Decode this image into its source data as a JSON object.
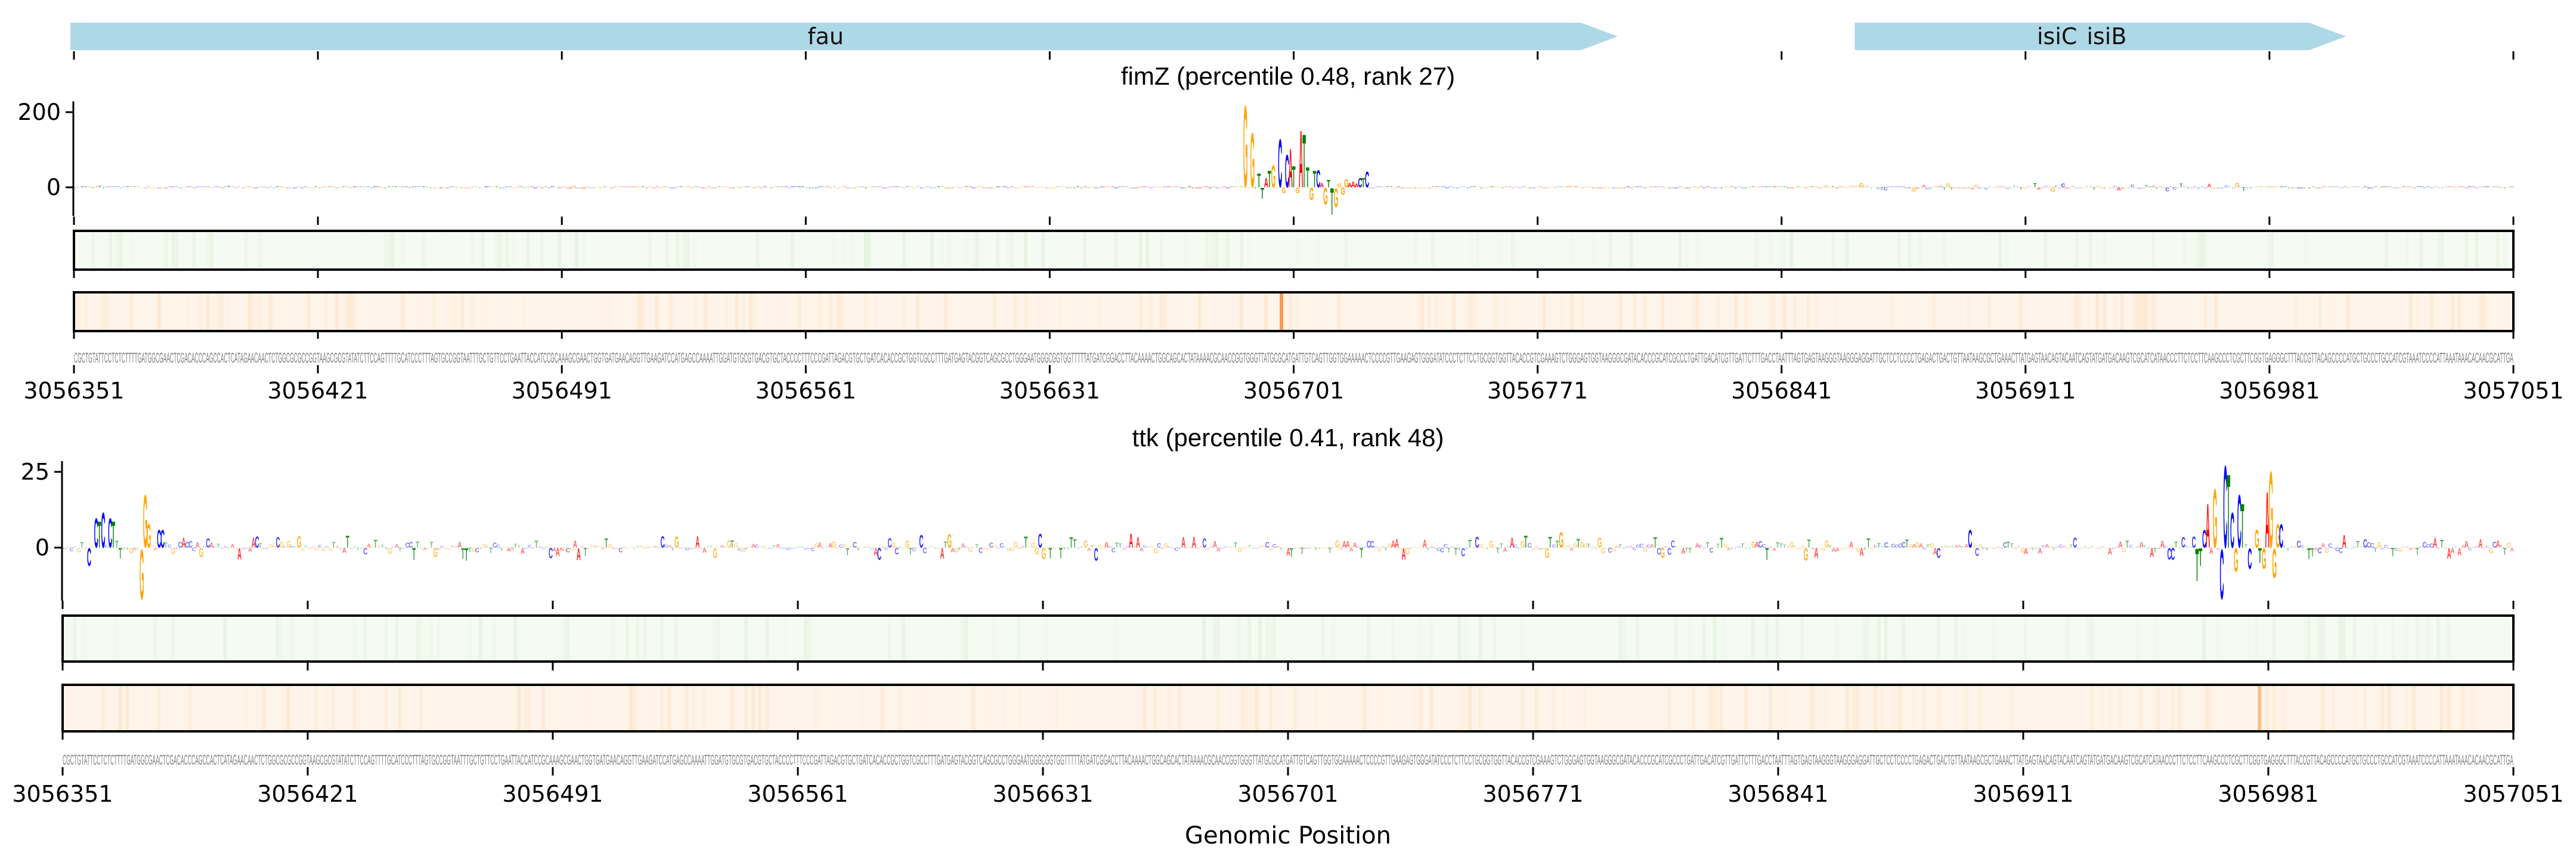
{
  "colors": {
    "A": "#ff0000",
    "C": "#0000ff",
    "G": "#ffa500",
    "T": "#008000",
    "gene": "#add8e6",
    "attr_bg": "#f5faf2",
    "attr_stripe": "#e2f1dc",
    "obs_bg": "#fef4e9",
    "obs_stripe": "#fde3c8",
    "sequence": "#808080"
  },
  "genes": [
    {
      "name": "fau",
      "start": 3056350,
      "end": 3056794,
      "strand": "+"
    },
    {
      "name": "isiC",
      "start": 3056862,
      "end": 3057003,
      "strand": "+"
    },
    {
      "name": "isiB",
      "start": 3056862,
      "end": 3057003,
      "strand": "+"
    }
  ],
  "sequence": "CGCTGTATTCCTCTCTTTTGATGGCGAACTCGACACCCAGCCACTCATAGAACAACTCTGGCGCGCCGGTAAGCGCGTATATCTTCCAGTTTTGCATCCCTTTAGTGCCGGTAATTTGCTGTTCCTGAATTACCATCCGCAAAGCGAACTGGTGATGAACAGGTTGAAGATCCATGAGCCAAAATTGGATGTGCGTGACGTGCTACCCCTTTCCCGATTAGACGTGCTGATCACACCGCTGGTCGCCTTTGATGAGTACGGTCAGCGCCTGGGAATGGGCGGTGGTTTTTATGATCGGACCTTACAAAACTGGCAGCACTATAAAACGCAACCGGTGGGTTATGCGCATGATTGTCAGTTGGTGGAAAAACTCCCCGTTGAAGAGTGGGATATCCCTCTTCCTGCGGTGGTTACACCGTCGAAAGTCTGGGAGTGGTAAGGGCGATACACCCGCATCGCCCTGATTGACATCGTTGATTCTTTGACCTAATTTAGTGAGTAAGGGTAAGGGAGGATTGCTCCTCCCCTGAGACTGACTGTTAATAAGCGCTGAAACTTATGAGTAACAGTACAATCAGTATGATGACAAGTCGCATCATAACCCTTCTCCTTCAAGCCCTCGCTTCGGTGAGGGCTTTACCGTTACAGCCCCATGCTGCCCTGCCATCGTAAATCCCCATTAAATAAACACAACGCATTGA",
  "chart_data": [
    {
      "type": "sequence-logo",
      "title": "fimZ (percentile 0.48, rank 27)",
      "xlabel": "",
      "ylabel": "",
      "xlim": [
        3056351,
        3057051
      ],
      "ylim": [
        -76,
        229
      ],
      "y_ticks": [
        "200",
        "0"
      ],
      "y_tick_values": [
        200,
        0
      ],
      "x_ticks": [
        "3056351",
        "3056421",
        "3056491",
        "3056561",
        "3056631",
        "3056701",
        "3056771",
        "3056841",
        "3056911",
        "3056981",
        "3057051"
      ],
      "background_amplitude": 4,
      "bumpy_ranges": [
        [
          3056860,
          3056980,
          14
        ]
      ],
      "observed_highlight_pos": 3056697,
      "observed_highlight_color": "#f79a52",
      "peaks": [
        {
          "pos": 3056687,
          "base": "G",
          "value": 225
        },
        {
          "pos": 3056689,
          "base": "G",
          "value": 150
        },
        {
          "pos": 3056691,
          "base": "T",
          "value": 38
        },
        {
          "pos": 3056692,
          "base": "T",
          "value": -30
        },
        {
          "pos": 3056693,
          "base": "A",
          "value": 25
        },
        {
          "pos": 3056694,
          "base": "T",
          "value": 45
        },
        {
          "pos": 3056695,
          "base": "G",
          "value": 60
        },
        {
          "pos": 3056697,
          "base": "C",
          "value": 133
        },
        {
          "pos": 3056698,
          "base": "G",
          "value": -15
        },
        {
          "pos": 3056699,
          "base": "C",
          "value": 90
        },
        {
          "pos": 3056700,
          "base": "A",
          "value": 106
        },
        {
          "pos": 3056701,
          "base": "T",
          "value": 58
        },
        {
          "pos": 3056702,
          "base": "G",
          "value": -15
        },
        {
          "pos": 3056703,
          "base": "A",
          "value": 157
        },
        {
          "pos": 3056704,
          "base": "T",
          "value": 145
        },
        {
          "pos": 3056705,
          "base": "T",
          "value": 55
        },
        {
          "pos": 3056706,
          "base": "G",
          "value": -33
        },
        {
          "pos": 3056707,
          "base": "T",
          "value": 45
        },
        {
          "pos": 3056708,
          "base": "C",
          "value": 48
        },
        {
          "pos": 3056709,
          "base": "A",
          "value": 12
        },
        {
          "pos": 3056710,
          "base": "G",
          "value": -45
        },
        {
          "pos": 3056711,
          "base": "T",
          "value": 20
        },
        {
          "pos": 3056712,
          "base": "T",
          "value": -73
        },
        {
          "pos": 3056713,
          "base": "G",
          "value": -52
        },
        {
          "pos": 3056714,
          "base": "G",
          "value": 10
        },
        {
          "pos": 3056715,
          "base": "G",
          "value": -20
        },
        {
          "pos": 3056716,
          "base": "G",
          "value": 22
        },
        {
          "pos": 3056717,
          "base": "A",
          "value": 12
        },
        {
          "pos": 3056718,
          "base": "A",
          "value": 16
        },
        {
          "pos": 3056719,
          "base": "A",
          "value": 10
        },
        {
          "pos": 3056720,
          "base": "C",
          "value": 25
        },
        {
          "pos": 3056721,
          "base": "T",
          "value": 25
        },
        {
          "pos": 3056722,
          "base": "C",
          "value": 43
        }
      ]
    },
    {
      "type": "sequence-logo",
      "title": "ttk (percentile 0.41, rank 48)",
      "xlabel": "Genomic Position",
      "ylabel": "",
      "xlim": [
        3056351,
        3057051
      ],
      "ylim": [
        -18,
        28
      ],
      "y_ticks": [
        "25",
        "0"
      ],
      "y_tick_values": [
        25,
        0
      ],
      "x_ticks": [
        "3056351",
        "3056421",
        "3056491",
        "3056561",
        "3056631",
        "3056701",
        "3056771",
        "3056841",
        "3056911",
        "3056981",
        "3057051"
      ],
      "background_amplitude": 5,
      "bumpy_ranges": [],
      "observed_highlight_pos": 3056978,
      "observed_highlight_color": "#fdbd88",
      "peaks": [
        {
          "pos": 3056358,
          "base": "C",
          "value": -6
        },
        {
          "pos": 3056360,
          "base": "C",
          "value": 10
        },
        {
          "pos": 3056361,
          "base": "T",
          "value": 9
        },
        {
          "pos": 3056362,
          "base": "C",
          "value": 12
        },
        {
          "pos": 3056364,
          "base": "C",
          "value": 10
        },
        {
          "pos": 3056365,
          "base": "T",
          "value": 9
        },
        {
          "pos": 3056373,
          "base": "G",
          "value": -17
        },
        {
          "pos": 3056374,
          "base": "G",
          "value": 18
        },
        {
          "pos": 3056375,
          "base": "G",
          "value": 8
        },
        {
          "pos": 3056378,
          "base": "C",
          "value": 6
        },
        {
          "pos": 3056379,
          "base": "C",
          "value": 6
        },
        {
          "pos": 3056896,
          "base": "C",
          "value": 6
        },
        {
          "pos": 3056961,
          "base": "T",
          "value": -11
        },
        {
          "pos": 3056962,
          "base": "T",
          "value": -6
        },
        {
          "pos": 3056963,
          "base": "C",
          "value": 6
        },
        {
          "pos": 3056964,
          "base": "A",
          "value": 15
        },
        {
          "pos": 3056966,
          "base": "G",
          "value": 20
        },
        {
          "pos": 3056968,
          "base": "C",
          "value": -17
        },
        {
          "pos": 3056969,
          "base": "C",
          "value": 28
        },
        {
          "pos": 3056970,
          "base": "T",
          "value": 25
        },
        {
          "pos": 3056971,
          "base": "C",
          "value": 12
        },
        {
          "pos": 3056972,
          "base": "G",
          "value": -8
        },
        {
          "pos": 3056973,
          "base": "C",
          "value": 18
        },
        {
          "pos": 3056974,
          "base": "T",
          "value": 15
        },
        {
          "pos": 3056976,
          "base": "C",
          "value": -7
        },
        {
          "pos": 3056978,
          "base": "G",
          "value": 6
        },
        {
          "pos": 3056979,
          "base": "T",
          "value": -5
        },
        {
          "pos": 3056980,
          "base": "G",
          "value": -7
        },
        {
          "pos": 3056981,
          "base": "A",
          "value": 19
        },
        {
          "pos": 3056982,
          "base": "G",
          "value": 26
        },
        {
          "pos": 3056983,
          "base": "G",
          "value": -10
        },
        {
          "pos": 3056984,
          "base": "G",
          "value": 8
        },
        {
          "pos": 3056985,
          "base": "C",
          "value": 8
        }
      ]
    }
  ]
}
